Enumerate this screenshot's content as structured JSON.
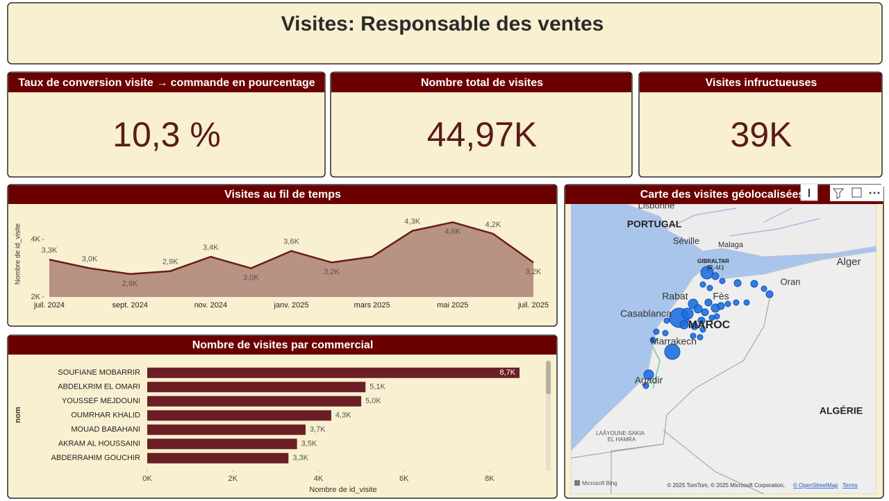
{
  "header": {
    "title": "Visites: Responsable des ventes"
  },
  "kpis": [
    {
      "title": "Taux de conversion visite → commande en pourcentage",
      "value": "10,3 %"
    },
    {
      "title": "Nombre total de visites",
      "value": "44,97K"
    },
    {
      "title": "Visites infructueuses",
      "value": "39K"
    }
  ],
  "chart_data": [
    {
      "type": "area",
      "title": "Visites au fil de temps",
      "y_label": "Nombre de id_visite",
      "categories": [
        "juil. 2024",
        null,
        "sept. 2024",
        null,
        "nov. 2024",
        null,
        "janv. 2025",
        null,
        "mars 2025",
        null,
        "mai 2025",
        null,
        "juil. 2025"
      ],
      "values": [
        3300,
        3000,
        2800,
        2900,
        3400,
        3000,
        3600,
        3200,
        3400,
        4300,
        4600,
        4200,
        3200
      ],
      "value_labels": [
        "3,3K",
        "3,0K",
        "2,8K",
        "2,9K",
        "3,4K",
        "3,0K",
        "3,6K",
        "3,2K",
        null,
        "4,3K",
        "4,6K",
        "4,2K",
        "3,2K"
      ],
      "color": "#6b1a1a",
      "fill": "#b89282",
      "ylim": [
        2000,
        4800
      ],
      "yticks": [
        {
          "value": 2000,
          "label": "2K"
        },
        {
          "value": 4000,
          "label": "4K"
        }
      ]
    },
    {
      "type": "bar",
      "orientation": "horizontal",
      "title": "Nombre de visites par commercial",
      "x_label": "Nombre de id_visite",
      "y_label": "nom",
      "categories": [
        "SOUFIANE MOBARRIR",
        "ABDELKRIM EL OMARI",
        "YOUSSEF MEJDOUNI",
        "OUMRHAR KHALID",
        "MOUAD BABAHANI",
        "AKRAM AL HOUSSAINI",
        "ABDERRAHIM GOUCHIR"
      ],
      "values": [
        8700,
        5100,
        5000,
        4300,
        3700,
        3500,
        3300
      ],
      "value_labels": [
        "8,7K",
        "5,1K",
        "5,0K",
        "4,3K",
        "3,7K",
        "3,5K",
        "3,3K"
      ],
      "color": "#6b1f24",
      "xlim": [
        0,
        9300
      ],
      "xticks": [
        {
          "value": 0,
          "label": "0K"
        },
        {
          "value": 2000,
          "label": "2K"
        },
        {
          "value": 4000,
          "label": "4K"
        },
        {
          "value": 6000,
          "label": "6K"
        },
        {
          "value": 8000,
          "label": "8K"
        }
      ]
    }
  ],
  "map": {
    "title": "Carte des visites géolocalisées",
    "labels": [
      "Lisbonne",
      "PORTUGAL",
      "Séville",
      "Malaga",
      "GIBRALTAR",
      "(R.-U.)",
      "Alger",
      "Oran",
      "Rabat",
      "Fès",
      "Casablanca",
      "MAROC",
      "Marrakech",
      "Agadir",
      "ALGÉRIE",
      "LAÂYOUNE-SAKIA",
      "EL HAMRA"
    ],
    "attribution": {
      "logo": "Microsoft Bing",
      "copyright": "© 2025 TomTom, © 2025 Microsoft Corporation,",
      "osm": "© OpenStreetMap",
      "terms": "Terms"
    }
  }
}
